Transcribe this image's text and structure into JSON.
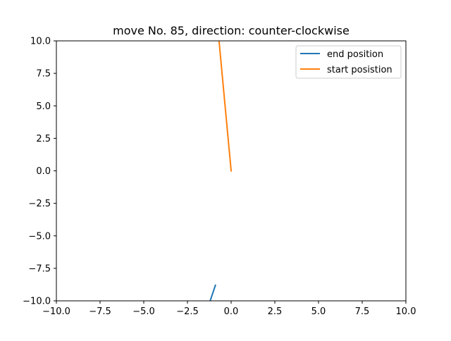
{
  "chart_data": {
    "type": "line",
    "title": "move No. 85, direction: counter-clockwise",
    "xlabel": "",
    "ylabel": "",
    "xlim": [
      -10,
      10
    ],
    "ylim": [
      -10,
      10
    ],
    "grid": false,
    "legend_position": "top-right",
    "x_ticks": [
      -10,
      -7.5,
      -5,
      -2.5,
      0,
      2.5,
      5,
      7.5,
      10
    ],
    "x_tick_labels": [
      "−10.0",
      "−7.5",
      "−5.0",
      "−2.5",
      "0.0",
      "2.5",
      "5.0",
      "7.5",
      "10.0"
    ],
    "y_ticks": [
      -10,
      -7.5,
      -5,
      -2.5,
      0,
      2.5,
      5,
      7.5,
      10
    ],
    "y_tick_labels": [
      "−10.0",
      "−7.5",
      "−5.0",
      "−2.5",
      "0.0",
      "2.5",
      "5.0",
      "7.5",
      "10.0"
    ],
    "series": [
      {
        "name": "end position",
        "color": "#1f77b4",
        "x": [
          -1.2,
          -0.9
        ],
        "y": [
          -10.0,
          -8.8
        ]
      },
      {
        "name": "start posistion",
        "color": "#ff7f0e",
        "x": [
          0,
          -0.9
        ],
        "y": [
          0,
          13.0
        ]
      }
    ]
  }
}
